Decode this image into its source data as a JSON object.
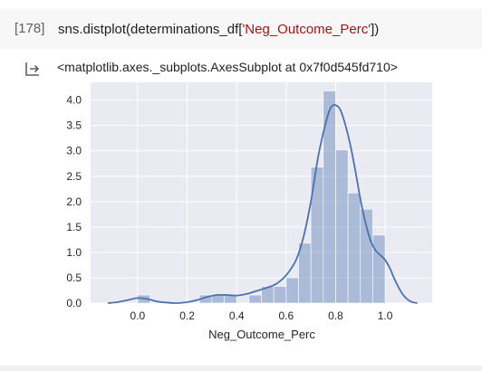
{
  "cell": {
    "execution_count": "[178]",
    "code_prefix": "sns.distplot(determinations_df[",
    "code_string": "'Neg_Outcome_Perc'",
    "code_suffix": "])"
  },
  "output": {
    "icon": "output-redirect-icon",
    "text": "<matplotlib.axes._subplots.AxesSubplot at 0x7f0d545fd710>"
  },
  "chart_data": {
    "type": "bar",
    "xlabel": "Neg_Outcome_Perc",
    "ylabel": "",
    "xlim": [
      -0.19,
      1.19
    ],
    "ylim": [
      0,
      4.35
    ],
    "x_ticks": [
      0.0,
      0.2,
      0.4,
      0.6,
      0.8,
      1.0
    ],
    "x_tick_labels": [
      "0.0",
      "0.2",
      "0.4",
      "0.6",
      "0.8",
      "1.0"
    ],
    "y_ticks": [
      0.0,
      0.5,
      1.0,
      1.5,
      2.0,
      2.5,
      3.0,
      3.5,
      4.0
    ],
    "y_tick_labels": [
      "0.0",
      "0.5",
      "1.0",
      "1.5",
      "2.0",
      "2.5",
      "3.0",
      "3.5",
      "4.0"
    ],
    "grid": true,
    "background": "#eaeaf2",
    "bar_color": "#4c72b0",
    "line_color": "#4c72b0",
    "bin_width": 0.05,
    "histogram": [
      {
        "x0": 0.0,
        "value": 0.16
      },
      {
        "x0": 0.05,
        "value": 0.0
      },
      {
        "x0": 0.1,
        "value": 0.0
      },
      {
        "x0": 0.15,
        "value": 0.0
      },
      {
        "x0": 0.2,
        "value": 0.0
      },
      {
        "x0": 0.25,
        "value": 0.16
      },
      {
        "x0": 0.3,
        "value": 0.16
      },
      {
        "x0": 0.35,
        "value": 0.16
      },
      {
        "x0": 0.4,
        "value": 0.0
      },
      {
        "x0": 0.45,
        "value": 0.16
      },
      {
        "x0": 0.5,
        "value": 0.33
      },
      {
        "x0": 0.55,
        "value": 0.33
      },
      {
        "x0": 0.6,
        "value": 0.5
      },
      {
        "x0": 0.65,
        "value": 1.18
      },
      {
        "x0": 0.7,
        "value": 2.68
      },
      {
        "x0": 0.75,
        "value": 4.18
      },
      {
        "x0": 0.8,
        "value": 3.02
      },
      {
        "x0": 0.85,
        "value": 2.17
      },
      {
        "x0": 0.9,
        "value": 1.85
      },
      {
        "x0": 0.95,
        "value": 1.34
      }
    ],
    "kde": {
      "x": [
        -0.12,
        -0.08,
        -0.04,
        0.0,
        0.04,
        0.08,
        0.12,
        0.16,
        0.2,
        0.24,
        0.28,
        0.32,
        0.36,
        0.4,
        0.44,
        0.48,
        0.52,
        0.56,
        0.6,
        0.64,
        0.67,
        0.7,
        0.73,
        0.76,
        0.78,
        0.8,
        0.82,
        0.84,
        0.86,
        0.88,
        0.9,
        0.92,
        0.94,
        0.96,
        0.98,
        1.0,
        1.02,
        1.04,
        1.07,
        1.1,
        1.13
      ],
      "y": [
        0.0,
        0.02,
        0.06,
        0.1,
        0.08,
        0.03,
        0.01,
        0.0,
        0.02,
        0.06,
        0.12,
        0.16,
        0.16,
        0.15,
        0.18,
        0.24,
        0.3,
        0.38,
        0.55,
        0.85,
        1.3,
        2.0,
        2.9,
        3.55,
        3.85,
        3.9,
        3.8,
        3.5,
        3.1,
        2.6,
        2.05,
        1.6,
        1.25,
        1.05,
        0.95,
        0.85,
        0.68,
        0.45,
        0.18,
        0.04,
        0.0
      ]
    }
  }
}
